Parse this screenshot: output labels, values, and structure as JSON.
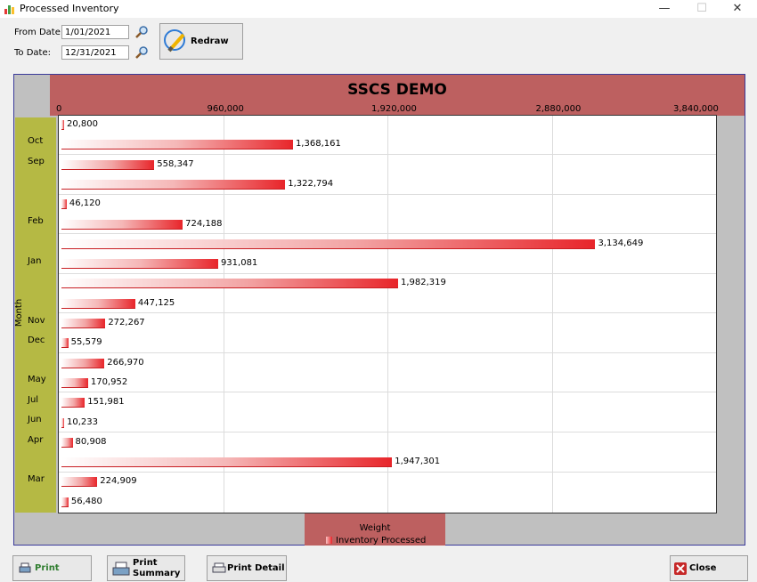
{
  "window": {
    "title": "Processed Inventory",
    "minimize": "—",
    "maximize": "☐",
    "close": "✕"
  },
  "filters": {
    "from_label": "From Date:",
    "from_value": "1/01/2021",
    "to_label": "To Date:",
    "to_value": "12/31/2021",
    "redraw_label": "Redraw"
  },
  "chart_data": {
    "type": "bar",
    "orientation": "horizontal",
    "title": "SSCS DEMO",
    "xlabel": "Month",
    "ylabel": "Weight",
    "value_ticks": [
      "0",
      "960,000",
      "1,920,000",
      "2,880,000",
      "3,840,000"
    ],
    "value_range": [
      0,
      3840000
    ],
    "month_labels": [
      "Oct",
      "Sep",
      "Feb",
      "Jan",
      "Nov",
      "Dec",
      "May",
      "Jul",
      "Jun",
      "Apr",
      "Mar"
    ],
    "legend": [
      {
        "name": "Inventory Processed",
        "color": "#e8252a"
      }
    ],
    "bars": [
      {
        "value": 20800,
        "label": "20,800"
      },
      {
        "value": 1368161,
        "label": "1,368,161"
      },
      {
        "value": 558347,
        "label": "558,347"
      },
      {
        "value": 1322794,
        "label": "1,322,794"
      },
      {
        "value": 46120,
        "label": "46,120"
      },
      {
        "value": 724188,
        "label": "724,188"
      },
      {
        "value": 3134649,
        "label": "3,134,649"
      },
      {
        "value": 931081,
        "label": "931,081"
      },
      {
        "value": 1982319,
        "label": "1,982,319"
      },
      {
        "value": 447125,
        "label": "447,125"
      },
      {
        "value": 272267,
        "label": "272,267"
      },
      {
        "value": 55579,
        "label": "55,579"
      },
      {
        "value": 266970,
        "label": "266,970"
      },
      {
        "value": 170952,
        "label": "170,952"
      },
      {
        "value": 151981,
        "label": "151,981"
      },
      {
        "value": 10233,
        "label": "10,233"
      },
      {
        "value": 80908,
        "label": "80,908"
      },
      {
        "value": 1947301,
        "label": "1,947,301"
      },
      {
        "value": 224909,
        "label": "224,909"
      },
      {
        "value": 56480,
        "label": "56,480"
      }
    ]
  },
  "footer": {
    "print": "Print",
    "print_summary_1": "Print",
    "print_summary_2": "Summary",
    "print_detail": "Print Detail",
    "close": "Close"
  },
  "colors": {
    "title_band": "#bd6060",
    "axis_band": "#b5b944",
    "bar": "#e8252a"
  }
}
